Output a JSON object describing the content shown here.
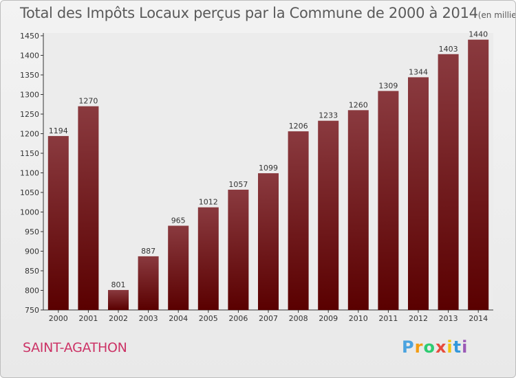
{
  "chart_data": {
    "type": "bar",
    "title": "Total des Impôts Locaux perçus par la Commune de 2000 à 2014",
    "unit": "(en milliers d'€)",
    "categories": [
      "2000",
      "2001",
      "2002",
      "2003",
      "2004",
      "2005",
      "2006",
      "2007",
      "2008",
      "2009",
      "2010",
      "2011",
      "2012",
      "2013",
      "2014"
    ],
    "values": [
      1194,
      1270,
      801,
      887,
      965,
      1012,
      1057,
      1099,
      1206,
      1233,
      1260,
      1309,
      1344,
      1403,
      1440
    ],
    "ylim": [
      750,
      1450
    ],
    "yticks": [
      750,
      800,
      850,
      900,
      950,
      1000,
      1050,
      1100,
      1150,
      1200,
      1250,
      1300,
      1350,
      1400,
      1450
    ],
    "grid": false,
    "bar_color_top": "#8a3a3f",
    "bar_color_bottom": "#5a0000"
  },
  "commune": "SAINT-AGATHON",
  "logo": {
    "letters": [
      "P",
      "r",
      "o",
      "x",
      "i",
      "t",
      "i"
    ],
    "colors": [
      "#4aa3df",
      "#f39c12",
      "#2ecc71",
      "#e74c3c",
      "#f1c40f",
      "#3498db",
      "#9b59b6"
    ]
  }
}
